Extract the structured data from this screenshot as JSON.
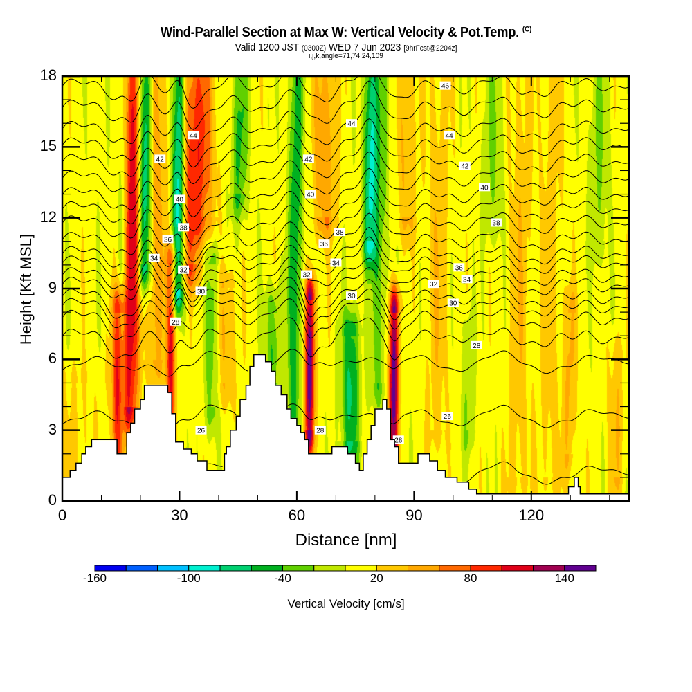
{
  "title": {
    "main": "Wind-Parallel Section at Max W: Vertical Velocity & Pot.Temp.",
    "copyright": "(C)",
    "valid_prefix": "Valid 1200 JST",
    "valid_utc": "(0300Z)",
    "valid_date": "WED 7 Jun 2023",
    "forecast": "[9hrFcst@2204z]",
    "indices": "i,j,k,angle=71,74,24,109"
  },
  "chart_data": {
    "type": "heatmap",
    "title": "Wind-Parallel Section at Max W: Vertical Velocity & Pot.Temp.",
    "xlabel": "Distance [nm]",
    "ylabel": "Height [Kft MSL]",
    "xlim": [
      0,
      145
    ],
    "ylim": [
      0,
      18
    ],
    "x_ticks": [
      0,
      30,
      60,
      90,
      120
    ],
    "x_tick_labels": [
      "0",
      "30",
      "60",
      "90",
      "120"
    ],
    "x_minor_step": 10,
    "y_ticks": [
      0,
      3,
      6,
      9,
      12,
      15,
      18
    ],
    "y_tick_labels": [
      "0",
      "3",
      "6",
      "9",
      "12",
      "15",
      "18"
    ],
    "y_minor_step": 1,
    "colorbar": {
      "label": "Vertical Velocity [cm/s]",
      "levels": [
        -160,
        -140,
        -120,
        -100,
        -80,
        -60,
        -40,
        -20,
        0,
        20,
        40,
        60,
        80,
        100,
        120,
        140,
        160
      ],
      "tick_labels": [
        "-160",
        "-100",
        "-40",
        "20",
        "80",
        "140"
      ],
      "tick_values": [
        -160,
        -100,
        -40,
        20,
        80,
        140
      ],
      "colors": [
        "#0000f0",
        "#0060ff",
        "#00c0ff",
        "#00f0d0",
        "#00d070",
        "#00b020",
        "#60d000",
        "#c0e800",
        "#ffff00",
        "#ffc800",
        "#ffa800",
        "#ff6800",
        "#ff2800",
        "#e00018",
        "#a00050",
        "#600090"
      ]
    },
    "vertical_velocity_plumes": [
      {
        "x_nm": 2,
        "width_nm": 8,
        "z_bottom": 0,
        "z_top": 5,
        "w": 15
      },
      {
        "x_nm": 14.5,
        "width_nm": 1.6,
        "z_bottom": 2,
        "z_top": 8,
        "w": 95
      },
      {
        "x_nm": 17.5,
        "width_nm": 2.2,
        "z_bottom": 4,
        "z_top": 18,
        "w": 115
      },
      {
        "x_nm": 15.5,
        "width_nm": 1.2,
        "z_bottom": 4,
        "z_top": 18,
        "w": -45
      },
      {
        "x_nm": 21,
        "width_nm": 1.6,
        "z_bottom": 10,
        "z_top": 18,
        "w": -100
      },
      {
        "x_nm": 24,
        "width_nm": 2.5,
        "z_bottom": 6,
        "z_top": 18,
        "w": 45
      },
      {
        "x_nm": 29.5,
        "width_nm": 1.6,
        "z_bottom": 9,
        "z_top": 18,
        "w": -120
      },
      {
        "x_nm": 28,
        "width_nm": 1.2,
        "z_bottom": 2,
        "z_top": 10,
        "w": 95
      },
      {
        "x_nm": 32.5,
        "width_nm": 3,
        "z_bottom": 10,
        "z_top": 18,
        "w": 70
      },
      {
        "x_nm": 36,
        "width_nm": 3,
        "z_bottom": 12,
        "z_top": 18,
        "w": 55
      },
      {
        "x_nm": 38.5,
        "width_nm": 1.8,
        "z_bottom": 4,
        "z_top": 10,
        "w": -45
      },
      {
        "x_nm": 45,
        "width_nm": 2,
        "z_bottom": 13,
        "z_top": 18,
        "w": -55
      },
      {
        "x_nm": 42,
        "width_nm": 3,
        "z_bottom": 5,
        "z_top": 9,
        "w": 30
      },
      {
        "x_nm": 54,
        "width_nm": 2,
        "z_bottom": 5,
        "z_top": 8,
        "w": -50
      },
      {
        "x_nm": 59.5,
        "width_nm": 1.8,
        "z_bottom": 3,
        "z_top": 18,
        "w": -65
      },
      {
        "x_nm": 63.5,
        "width_nm": 1.3,
        "z_bottom": 3,
        "z_top": 8.5,
        "w": 145
      },
      {
        "x_nm": 67,
        "width_nm": 3,
        "z_bottom": 12,
        "z_top": 18,
        "w": 50
      },
      {
        "x_nm": 74,
        "width_nm": 2.2,
        "z_bottom": 2.5,
        "z_top": 7,
        "w": -75
      },
      {
        "x_nm": 78.5,
        "width_nm": 1.6,
        "z_bottom": 11,
        "z_top": 18,
        "w": -90
      },
      {
        "x_nm": 81,
        "width_nm": 2,
        "z_bottom": 5,
        "z_top": 18,
        "w": -45
      },
      {
        "x_nm": 85,
        "width_nm": 1.3,
        "z_bottom": 2.5,
        "z_top": 8,
        "w": 145
      },
      {
        "x_nm": 88,
        "width_nm": 2.5,
        "z_bottom": 12,
        "z_top": 18,
        "w": 35
      },
      {
        "x_nm": 96,
        "width_nm": 3,
        "z_bottom": 3,
        "z_top": 18,
        "w": 25
      },
      {
        "x_nm": 104,
        "width_nm": 1.5,
        "z_bottom": 3,
        "z_top": 7,
        "w": -30
      },
      {
        "x_nm": 110,
        "width_nm": 2.5,
        "z_bottom": 12,
        "z_top": 18,
        "w": -30
      },
      {
        "x_nm": 117,
        "width_nm": 3,
        "z_bottom": 1,
        "z_top": 18,
        "w": 25
      },
      {
        "x_nm": 125,
        "width_nm": 3,
        "z_bottom": 1,
        "z_top": 18,
        "w": 22
      },
      {
        "x_nm": 130,
        "width_nm": 1.6,
        "z_bottom": 2,
        "z_top": 8,
        "w": 35
      },
      {
        "x_nm": 137,
        "width_nm": 2.5,
        "z_bottom": 11,
        "z_top": 18,
        "w": -30
      },
      {
        "x_nm": 142,
        "width_nm": 2,
        "z_bottom": 1,
        "z_top": 6,
        "w": 30
      }
    ],
    "terrain_kft": [
      [
        0,
        1.0
      ],
      [
        2,
        1.3
      ],
      [
        3.5,
        1.6
      ],
      [
        5,
        2.0
      ],
      [
        6,
        2.3
      ],
      [
        7.5,
        2.6
      ],
      [
        13,
        2.6
      ],
      [
        14,
        2.0
      ],
      [
        16,
        2.0
      ],
      [
        16.5,
        2.9
      ],
      [
        17.5,
        3.3
      ],
      [
        18.5,
        3.9
      ],
      [
        20,
        4.3
      ],
      [
        21,
        4.9
      ],
      [
        25,
        4.9
      ],
      [
        27,
        4.6
      ],
      [
        28,
        3.7
      ],
      [
        29,
        2.5
      ],
      [
        31,
        2.2
      ],
      [
        33,
        2.0
      ],
      [
        34.5,
        1.7
      ],
      [
        36,
        1.7
      ],
      [
        37,
        1.3
      ],
      [
        41,
        1.3
      ],
      [
        41.5,
        2.0
      ],
      [
        42,
        2.3
      ],
      [
        43,
        3.0
      ],
      [
        44.5,
        3.6
      ],
      [
        45.5,
        4.3
      ],
      [
        47,
        4.9
      ],
      [
        48,
        5.7
      ],
      [
        49,
        6.2
      ],
      [
        51,
        6.2
      ],
      [
        52,
        5.9
      ],
      [
        53.5,
        5.5
      ],
      [
        54.5,
        4.9
      ],
      [
        56,
        4.5
      ],
      [
        57.5,
        3.9
      ],
      [
        58.5,
        3.5
      ],
      [
        60,
        3.2
      ],
      [
        61,
        2.9
      ],
      [
        62,
        2.6
      ],
      [
        63,
        2.0
      ],
      [
        68,
        2.0
      ],
      [
        69,
        2.3
      ],
      [
        72,
        2.3
      ],
      [
        73,
        2.0
      ],
      [
        75,
        1.6
      ],
      [
        76,
        1.3
      ],
      [
        77,
        2.0
      ],
      [
        78,
        2.6
      ],
      [
        79,
        3.2
      ],
      [
        80,
        3.9
      ],
      [
        82,
        4.3
      ],
      [
        83,
        3.9
      ],
      [
        84,
        2.6
      ],
      [
        85,
        2.3
      ],
      [
        86,
        1.6
      ],
      [
        89,
        1.6
      ],
      [
        91,
        2.0
      ],
      [
        93,
        2.0
      ],
      [
        94,
        1.7
      ],
      [
        96,
        1.3
      ],
      [
        98,
        1.0
      ],
      [
        101,
        0.8
      ],
      [
        104,
        0.5
      ],
      [
        106,
        0.3
      ],
      [
        129,
        0.3
      ],
      [
        129.5,
        0.6
      ],
      [
        131,
        1.0
      ],
      [
        132,
        0.6
      ],
      [
        132.5,
        0.3
      ],
      [
        145,
        0.3
      ]
    ],
    "isentropes_K": {
      "levels": [
        26,
        27,
        28,
        29,
        30,
        31,
        32,
        33,
        34,
        35,
        36,
        37,
        38,
        39,
        40,
        41,
        42,
        43,
        44,
        45,
        46
      ],
      "base_height_kft": [
        1.2,
        3.6,
        5.9,
        7.0,
        7.8,
        8.3,
        8.7,
        9.2,
        9.6,
        10.1,
        10.5,
        11.1,
        11.8,
        12.4,
        13.0,
        13.7,
        14.4,
        15.1,
        15.8,
        16.7,
        17.6
      ]
    },
    "contour_labels": [
      {
        "text": "46",
        "x_nm": 98,
        "z_kft": 17.6
      },
      {
        "text": "44",
        "x_nm": 33.5,
        "z_kft": 15.5
      },
      {
        "text": "44",
        "x_nm": 74,
        "z_kft": 16.0
      },
      {
        "text": "44",
        "x_nm": 99,
        "z_kft": 15.5
      },
      {
        "text": "42",
        "x_nm": 25,
        "z_kft": 14.5
      },
      {
        "text": "42",
        "x_nm": 63,
        "z_kft": 14.5
      },
      {
        "text": "42",
        "x_nm": 103,
        "z_kft": 14.2
      },
      {
        "text": "40",
        "x_nm": 30,
        "z_kft": 12.8
      },
      {
        "text": "40",
        "x_nm": 63.5,
        "z_kft": 13.0
      },
      {
        "text": "40",
        "x_nm": 108,
        "z_kft": 13.3
      },
      {
        "text": "38",
        "x_nm": 31,
        "z_kft": 11.6
      },
      {
        "text": "38",
        "x_nm": 71,
        "z_kft": 11.4
      },
      {
        "text": "38",
        "x_nm": 111,
        "z_kft": 11.8
      },
      {
        "text": "36",
        "x_nm": 27,
        "z_kft": 11.1
      },
      {
        "text": "36",
        "x_nm": 67,
        "z_kft": 10.9
      },
      {
        "text": "36",
        "x_nm": 101.5,
        "z_kft": 9.9
      },
      {
        "text": "34",
        "x_nm": 23.5,
        "z_kft": 10.3
      },
      {
        "text": "34",
        "x_nm": 70,
        "z_kft": 10.1
      },
      {
        "text": "34",
        "x_nm": 103.5,
        "z_kft": 9.4
      },
      {
        "text": "32",
        "x_nm": 31,
        "z_kft": 9.8
      },
      {
        "text": "32",
        "x_nm": 62.5,
        "z_kft": 9.6
      },
      {
        "text": "32",
        "x_nm": 95,
        "z_kft": 9.2
      },
      {
        "text": "30",
        "x_nm": 35.5,
        "z_kft": 8.9
      },
      {
        "text": "30",
        "x_nm": 74,
        "z_kft": 8.7
      },
      {
        "text": "30",
        "x_nm": 100,
        "z_kft": 8.4
      },
      {
        "text": "28",
        "x_nm": 29,
        "z_kft": 7.6
      },
      {
        "text": "28",
        "x_nm": 106,
        "z_kft": 6.6
      },
      {
        "text": "26",
        "x_nm": 35.5,
        "z_kft": 3.0
      },
      {
        "text": "26",
        "x_nm": 98.5,
        "z_kft": 3.6
      },
      {
        "text": "28",
        "x_nm": 66,
        "z_kft": 3.0
      },
      {
        "text": "28",
        "x_nm": 86,
        "z_kft": 2.6
      }
    ]
  }
}
